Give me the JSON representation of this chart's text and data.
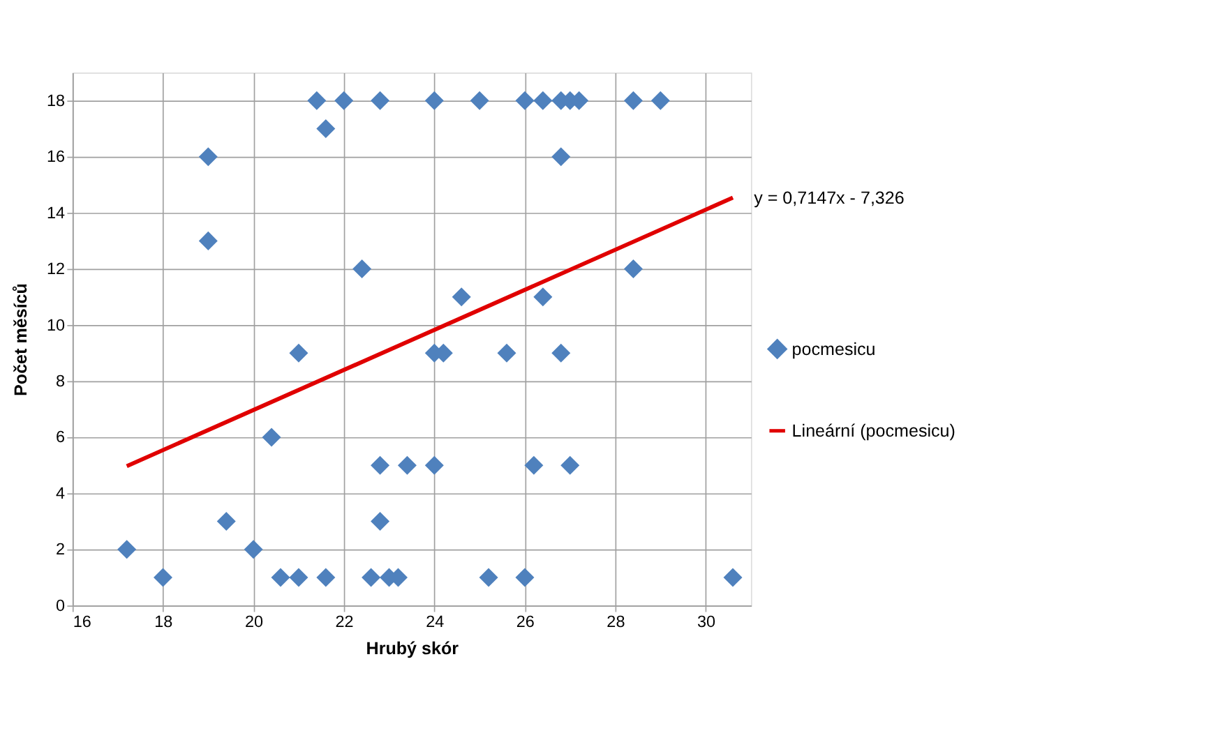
{
  "chart_data": {
    "type": "scatter",
    "xlabel": "Hrubý skór",
    "ylabel": "Počet měsíců",
    "xlim": [
      16,
      31
    ],
    "xticks": [
      16,
      18,
      20,
      22,
      24,
      26,
      28,
      30
    ],
    "ylim": [
      0,
      19
    ],
    "yticks": [
      0,
      2,
      4,
      6,
      8,
      10,
      12,
      14,
      16,
      18
    ],
    "grid": true,
    "legend": "right",
    "annotations": [
      {
        "text": "y = 0,7147x - 7,326",
        "x": 30.6,
        "y": 14.54
      }
    ],
    "series": [
      {
        "name": "pocmesicu",
        "color": "#4f81bd",
        "marker": "diamond",
        "x": [
          21.4,
          22.0,
          22.8,
          24.0,
          25.0,
          26.0,
          26.4,
          26.8,
          27.0,
          27.2,
          28.4,
          29.0,
          21.6,
          19.0,
          26.8,
          19.0,
          22.4,
          28.4,
          24.6,
          26.4,
          21.0,
          24.0,
          24.2,
          25.6,
          26.8,
          20.4,
          22.8,
          23.4,
          24.0,
          26.2,
          27.0,
          19.4,
          22.8,
          17.2,
          20.0,
          18.0,
          20.6,
          21.0,
          21.6,
          22.6,
          23.0,
          23.2,
          25.2,
          26.0,
          30.6
        ],
        "values": [
          18,
          18,
          18,
          18,
          18,
          18,
          18,
          18,
          18,
          18,
          18,
          18,
          17,
          16,
          16,
          13,
          12,
          12,
          11,
          11,
          9,
          9,
          9,
          9,
          9,
          6,
          5,
          5,
          5,
          5,
          5,
          3,
          3,
          2,
          2,
          1,
          1,
          1,
          1,
          1,
          1,
          1,
          1,
          1,
          1
        ]
      },
      {
        "name": "Lineární (pocmesicu)",
        "color": "#e00000",
        "type": "line",
        "line_style": "solid",
        "x": [
          17.2,
          30.6
        ],
        "values": [
          4.97,
          14.54
        ]
      }
    ]
  }
}
